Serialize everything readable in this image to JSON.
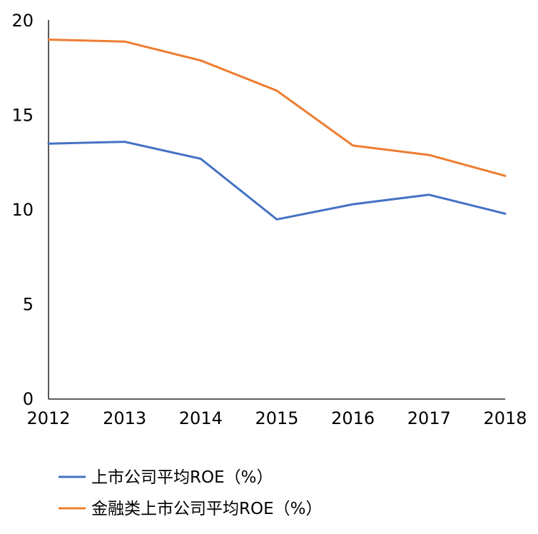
{
  "chart_data": {
    "type": "line",
    "title": "",
    "xlabel": "",
    "ylabel": "",
    "x": [
      "2012",
      "2013",
      "2014",
      "2015",
      "2016",
      "2017",
      "2018"
    ],
    "ylim": [
      0,
      20
    ],
    "yticks": [
      "0",
      "5",
      "10",
      "15",
      "20"
    ],
    "grid": false,
    "legend_position": "bottom",
    "series": [
      {
        "name": "上市公司平均ROE（%）",
        "color": "#4472C4",
        "values": [
          13.5,
          13.6,
          12.7,
          9.5,
          10.3,
          10.8,
          9.8
        ]
      },
      {
        "name": "金融类上市公司平均ROE（%）",
        "color": "#ED7D31",
        "values": [
          19.0,
          18.9,
          17.9,
          16.3,
          13.4,
          12.9,
          11.8
        ]
      }
    ]
  }
}
